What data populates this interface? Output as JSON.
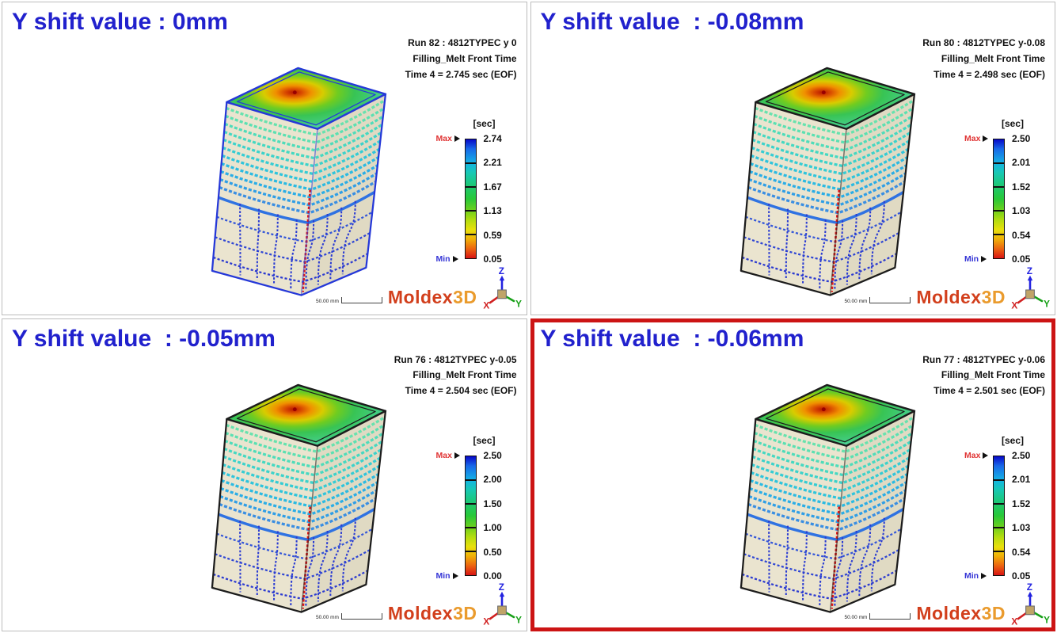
{
  "shared": {
    "legend_unit": "[sec]",
    "legend_max_label": "Max",
    "legend_min_label": "Min",
    "scale_bar_label": "50.00 mm",
    "logo_part1": "Moldex",
    "logo_part2": "3D",
    "axis_x": "X",
    "axis_y": "Y",
    "axis_z": "Z"
  },
  "colors": {
    "title_text": "#2121cd",
    "highlight_border": "#cc1414",
    "legend_max_text": "#e03434",
    "legend_min_text": "#3434d6",
    "logo_moldex": "#d23f1c",
    "logo_3d": "#ea9b2d",
    "axis_x": "#d02020",
    "axis_y": "#18a018",
    "axis_z": "#2222e0"
  },
  "panels": [
    {
      "title": "Y shift value : 0mm",
      "run_line1": "Run 82 : 4812TYPEC y 0",
      "run_line2": "Filling_Melt Front Time",
      "run_line3": "Time 4 = 2.745 sec (EOF)",
      "legend_ticks": [
        "2.74",
        "2.21",
        "1.67",
        "1.13",
        "0.59",
        "0.05"
      ],
      "highlighted": false
    },
    {
      "title": "Y shift value  : -0.08mm",
      "run_line1": "Run 80 : 4812TYPEC y-0.08",
      "run_line2": "Filling_Melt Front Time",
      "run_line3": "Time 4 = 2.498 sec (EOF)",
      "legend_ticks": [
        "2.50",
        "2.01",
        "1.52",
        "1.03",
        "0.54",
        "0.05"
      ],
      "highlighted": false
    },
    {
      "title": "Y shift value  : -0.05mm",
      "run_line1": "Run 76 : 4812TYPEC y-0.05",
      "run_line2": "Filling_Melt Front Time",
      "run_line3": "Time 4 = 2.504 sec (EOF)",
      "legend_ticks": [
        "2.50",
        "2.00",
        "1.50",
        "1.00",
        "0.50",
        "0.00"
      ],
      "highlighted": false
    },
    {
      "title": "Y shift value  : -0.06mm",
      "run_line1": "Run 77 : 4812TYPEC y-0.06",
      "run_line2": "Filling_Melt Front Time",
      "run_line3": "Time 4 = 2.501 sec (EOF)",
      "legend_ticks": [
        "2.50",
        "2.01",
        "1.52",
        "1.03",
        "0.54",
        "0.05"
      ],
      "highlighted": true
    }
  ]
}
